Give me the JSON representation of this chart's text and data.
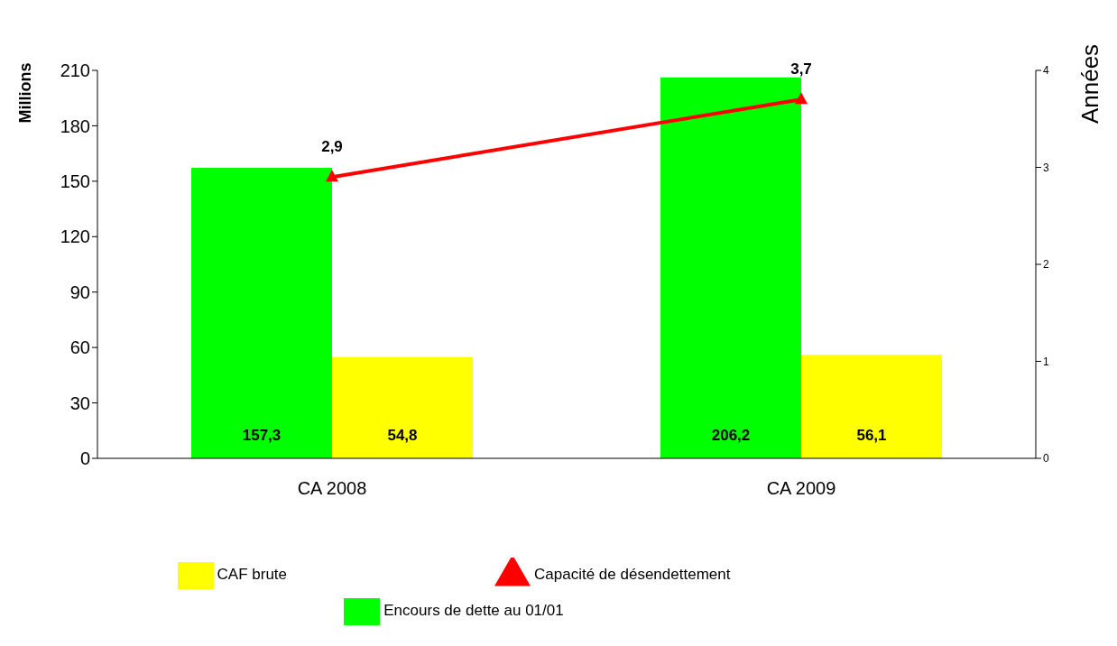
{
  "chart_data": {
    "type": "bar",
    "ylabel": "Millions",
    "y2label": "Années",
    "categories": [
      "CA 2008",
      "CA 2009"
    ],
    "series": [
      {
        "name": "Encours de dette au 01/01",
        "color": "#00ff00",
        "values": [
          157.3,
          206.2
        ],
        "value_labels": [
          "157,3",
          "206,2"
        ]
      },
      {
        "name": "CAF brute",
        "color": "#ffff00",
        "values": [
          54.8,
          56.1
        ],
        "value_labels": [
          "54,8",
          "56,1"
        ]
      },
      {
        "name": "Capacité de désendettement",
        "type": "line",
        "axis": "y2",
        "color": "#ff0000",
        "values": [
          2.9,
          3.7
        ],
        "value_labels": [
          "2,9",
          "3,7"
        ],
        "marker": "triangle"
      }
    ],
    "ylim": [
      0,
      210
    ],
    "yticks": [
      0,
      30,
      60,
      90,
      120,
      150,
      180,
      210
    ],
    "y2lim": [
      0,
      4
    ],
    "y2ticks": [
      0,
      1,
      2,
      3,
      4
    ],
    "grid": false,
    "legend": "bottom"
  }
}
